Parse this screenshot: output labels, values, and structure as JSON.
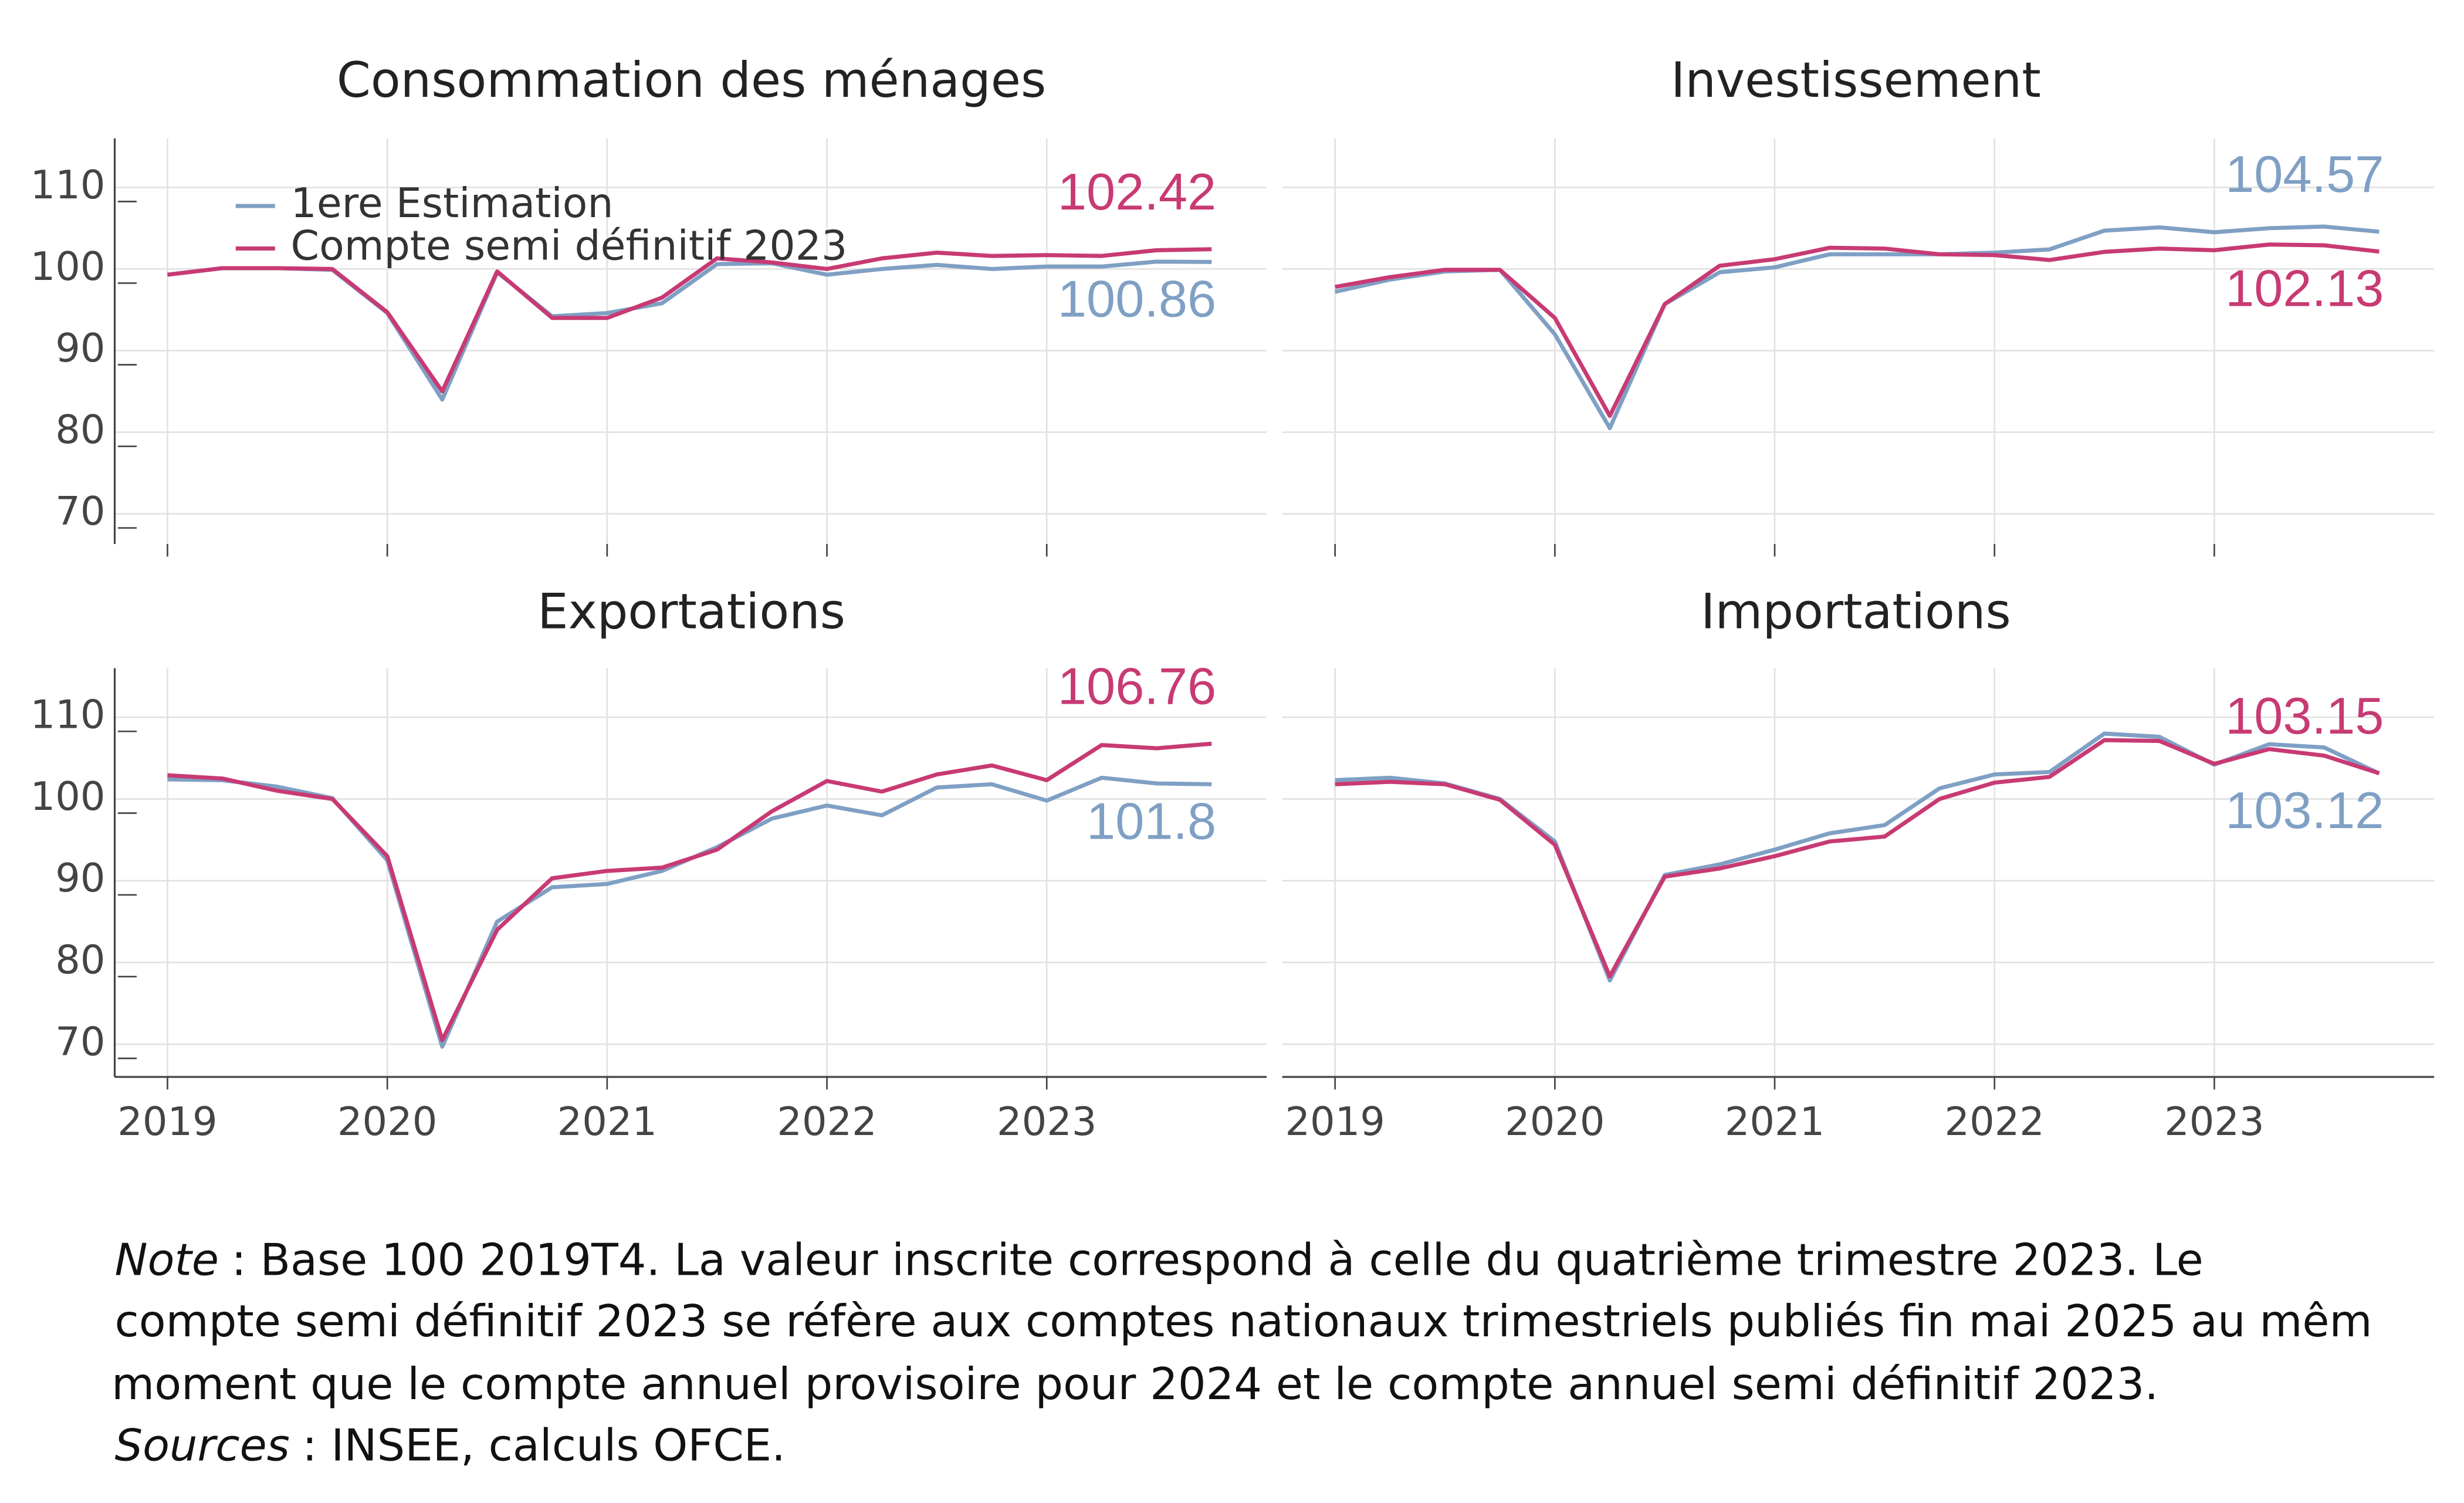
{
  "chart_data": [
    {
      "type": "line",
      "title": "Consommation des ménages",
      "x": [
        2019,
        2019.25,
        2019.5,
        2019.75,
        2020,
        2020.25,
        2020.5,
        2020.75,
        2021,
        2021.25,
        2021.5,
        2021.75,
        2022,
        2022.25,
        2022.5,
        2022.75,
        2023,
        2023.25,
        2023.5,
        2023.75
      ],
      "xlim": [
        2018.76,
        2024
      ],
      "xticks": [
        2019,
        2020,
        2021,
        2022,
        2023
      ],
      "ylim": [
        66.3,
        116
      ],
      "yticks": [
        70,
        80,
        90,
        100,
        110
      ],
      "show_xticklabels": false,
      "show_yticklabels": true,
      "grid": true,
      "legend": true,
      "series": [
        {
          "name": "1ere Estimation",
          "color": "#7fa0c4",
          "values": [
            99.3,
            100.1,
            100.1,
            99.9,
            94.6,
            84,
            99.6,
            94.2,
            94.6,
            95.8,
            100.6,
            100.7,
            99.3,
            100,
            100.5,
            100,
            100.3,
            100.3,
            100.9,
            100.86
          ]
        },
        {
          "name": "Compte semi définitif 2023",
          "color": "#c83a74",
          "values": [
            99.3,
            100.1,
            100.1,
            100,
            94.7,
            85,
            99.7,
            94,
            94,
            96.5,
            101.3,
            100.8,
            100,
            101.3,
            102,
            101.6,
            101.7,
            101.6,
            102.3,
            102.42
          ]
        }
      ]
    },
    {
      "type": "line",
      "title": "Investissement",
      "x": [
        2019,
        2019.25,
        2019.5,
        2019.75,
        2020,
        2020.25,
        2020.5,
        2020.75,
        2021,
        2021.25,
        2021.5,
        2021.75,
        2022,
        2022.25,
        2022.5,
        2022.75,
        2023,
        2023.25,
        2023.5,
        2023.75
      ],
      "xlim": [
        2018.76,
        2024
      ],
      "xticks": [
        2019,
        2020,
        2021,
        2022,
        2023
      ],
      "ylim": [
        66.3,
        116
      ],
      "yticks": [
        70,
        80,
        90,
        100,
        110
      ],
      "show_xticklabels": false,
      "show_yticklabels": false,
      "grid": true,
      "legend": false,
      "series": [
        {
          "color": "#7fa0c4",
          "values": [
            97.2,
            98.7,
            99.7,
            99.9,
            92,
            80.5,
            95.7,
            99.6,
            100.2,
            101.8,
            101.8,
            101.8,
            102,
            102.4,
            104.7,
            105.1,
            104.5,
            105,
            105.2,
            104.57
          ]
        },
        {
          "color": "#c83a74",
          "values": [
            97.8,
            99,
            99.9,
            99.9,
            94,
            82,
            95.7,
            100.4,
            101.2,
            102.6,
            102.5,
            101.8,
            101.7,
            101.1,
            102.1,
            102.5,
            102.3,
            103,
            102.9,
            102.13
          ]
        }
      ]
    },
    {
      "type": "line",
      "title": "Exportations",
      "x": [
        2019,
        2019.25,
        2019.5,
        2019.75,
        2020,
        2020.25,
        2020.5,
        2020.75,
        2021,
        2021.25,
        2021.5,
        2021.75,
        2022,
        2022.25,
        2022.5,
        2022.75,
        2023,
        2023.25,
        2023.5,
        2023.75
      ],
      "xlim": [
        2018.76,
        2024
      ],
      "xticks": [
        2019,
        2020,
        2021,
        2022,
        2023
      ],
      "ylim": [
        66,
        116
      ],
      "yticks": [
        70,
        80,
        90,
        100,
        110
      ],
      "show_xticklabels": true,
      "show_yticklabels": true,
      "grid": true,
      "legend": false,
      "series": [
        {
          "color": "#7fa0c4",
          "values": [
            102.4,
            102.3,
            101.5,
            100.1,
            92.5,
            69.7,
            85,
            89.2,
            89.6,
            91.2,
            94.1,
            97.6,
            99.2,
            98,
            101.4,
            101.8,
            99.8,
            102.6,
            101.9,
            101.8
          ]
        },
        {
          "color": "#c83a74",
          "values": [
            102.9,
            102.5,
            101,
            100,
            93,
            70.5,
            84,
            90.3,
            91.2,
            91.6,
            93.8,
            98.5,
            102.2,
            100.9,
            103,
            104.1,
            102.3,
            106.6,
            106.2,
            106.76
          ]
        }
      ]
    },
    {
      "type": "line",
      "title": "Importations",
      "x": [
        2019,
        2019.25,
        2019.5,
        2019.75,
        2020,
        2020.25,
        2020.5,
        2020.75,
        2021,
        2021.25,
        2021.5,
        2021.75,
        2022,
        2022.25,
        2022.5,
        2022.75,
        2023,
        2023.25,
        2023.5,
        2023.75
      ],
      "xlim": [
        2018.76,
        2024
      ],
      "xticks": [
        2019,
        2020,
        2021,
        2022,
        2023
      ],
      "ylim": [
        66,
        116
      ],
      "yticks": [
        70,
        80,
        90,
        100,
        110
      ],
      "show_xticklabels": true,
      "show_yticklabels": false,
      "grid": true,
      "legend": false,
      "series": [
        {
          "color": "#7fa0c4",
          "values": [
            102.3,
            102.6,
            101.9,
            100,
            94.8,
            77.8,
            90.7,
            92,
            93.8,
            95.8,
            96.8,
            101.3,
            103,
            103.3,
            108,
            107.6,
            104.2,
            106.7,
            106.3,
            103.12
          ]
        },
        {
          "color": "#c83a74",
          "values": [
            101.8,
            102.1,
            101.8,
            99.9,
            94.4,
            78.3,
            90.5,
            91.5,
            93,
            94.8,
            95.4,
            100,
            102,
            102.7,
            107.2,
            107.1,
            104.3,
            106.1,
            105.3,
            103.15
          ]
        }
      ]
    }
  ],
  "note": {
    "label": "Note",
    "lines": [
      ": Base 100 2019T4. La valeur inscrite correspond à celle du quatrième trimestre 2023. Le",
      "compte semi définitif 2023 se réfère aux comptes nationaux trimestriels publiés fin mai 2025 au mêm",
      "moment que le compte annuel provisoire pour 2024 et le compte annuel semi définitif 2023."
    ]
  },
  "sources": {
    "label": "Sources",
    "text": ": INSEE, calculs OFCE."
  }
}
